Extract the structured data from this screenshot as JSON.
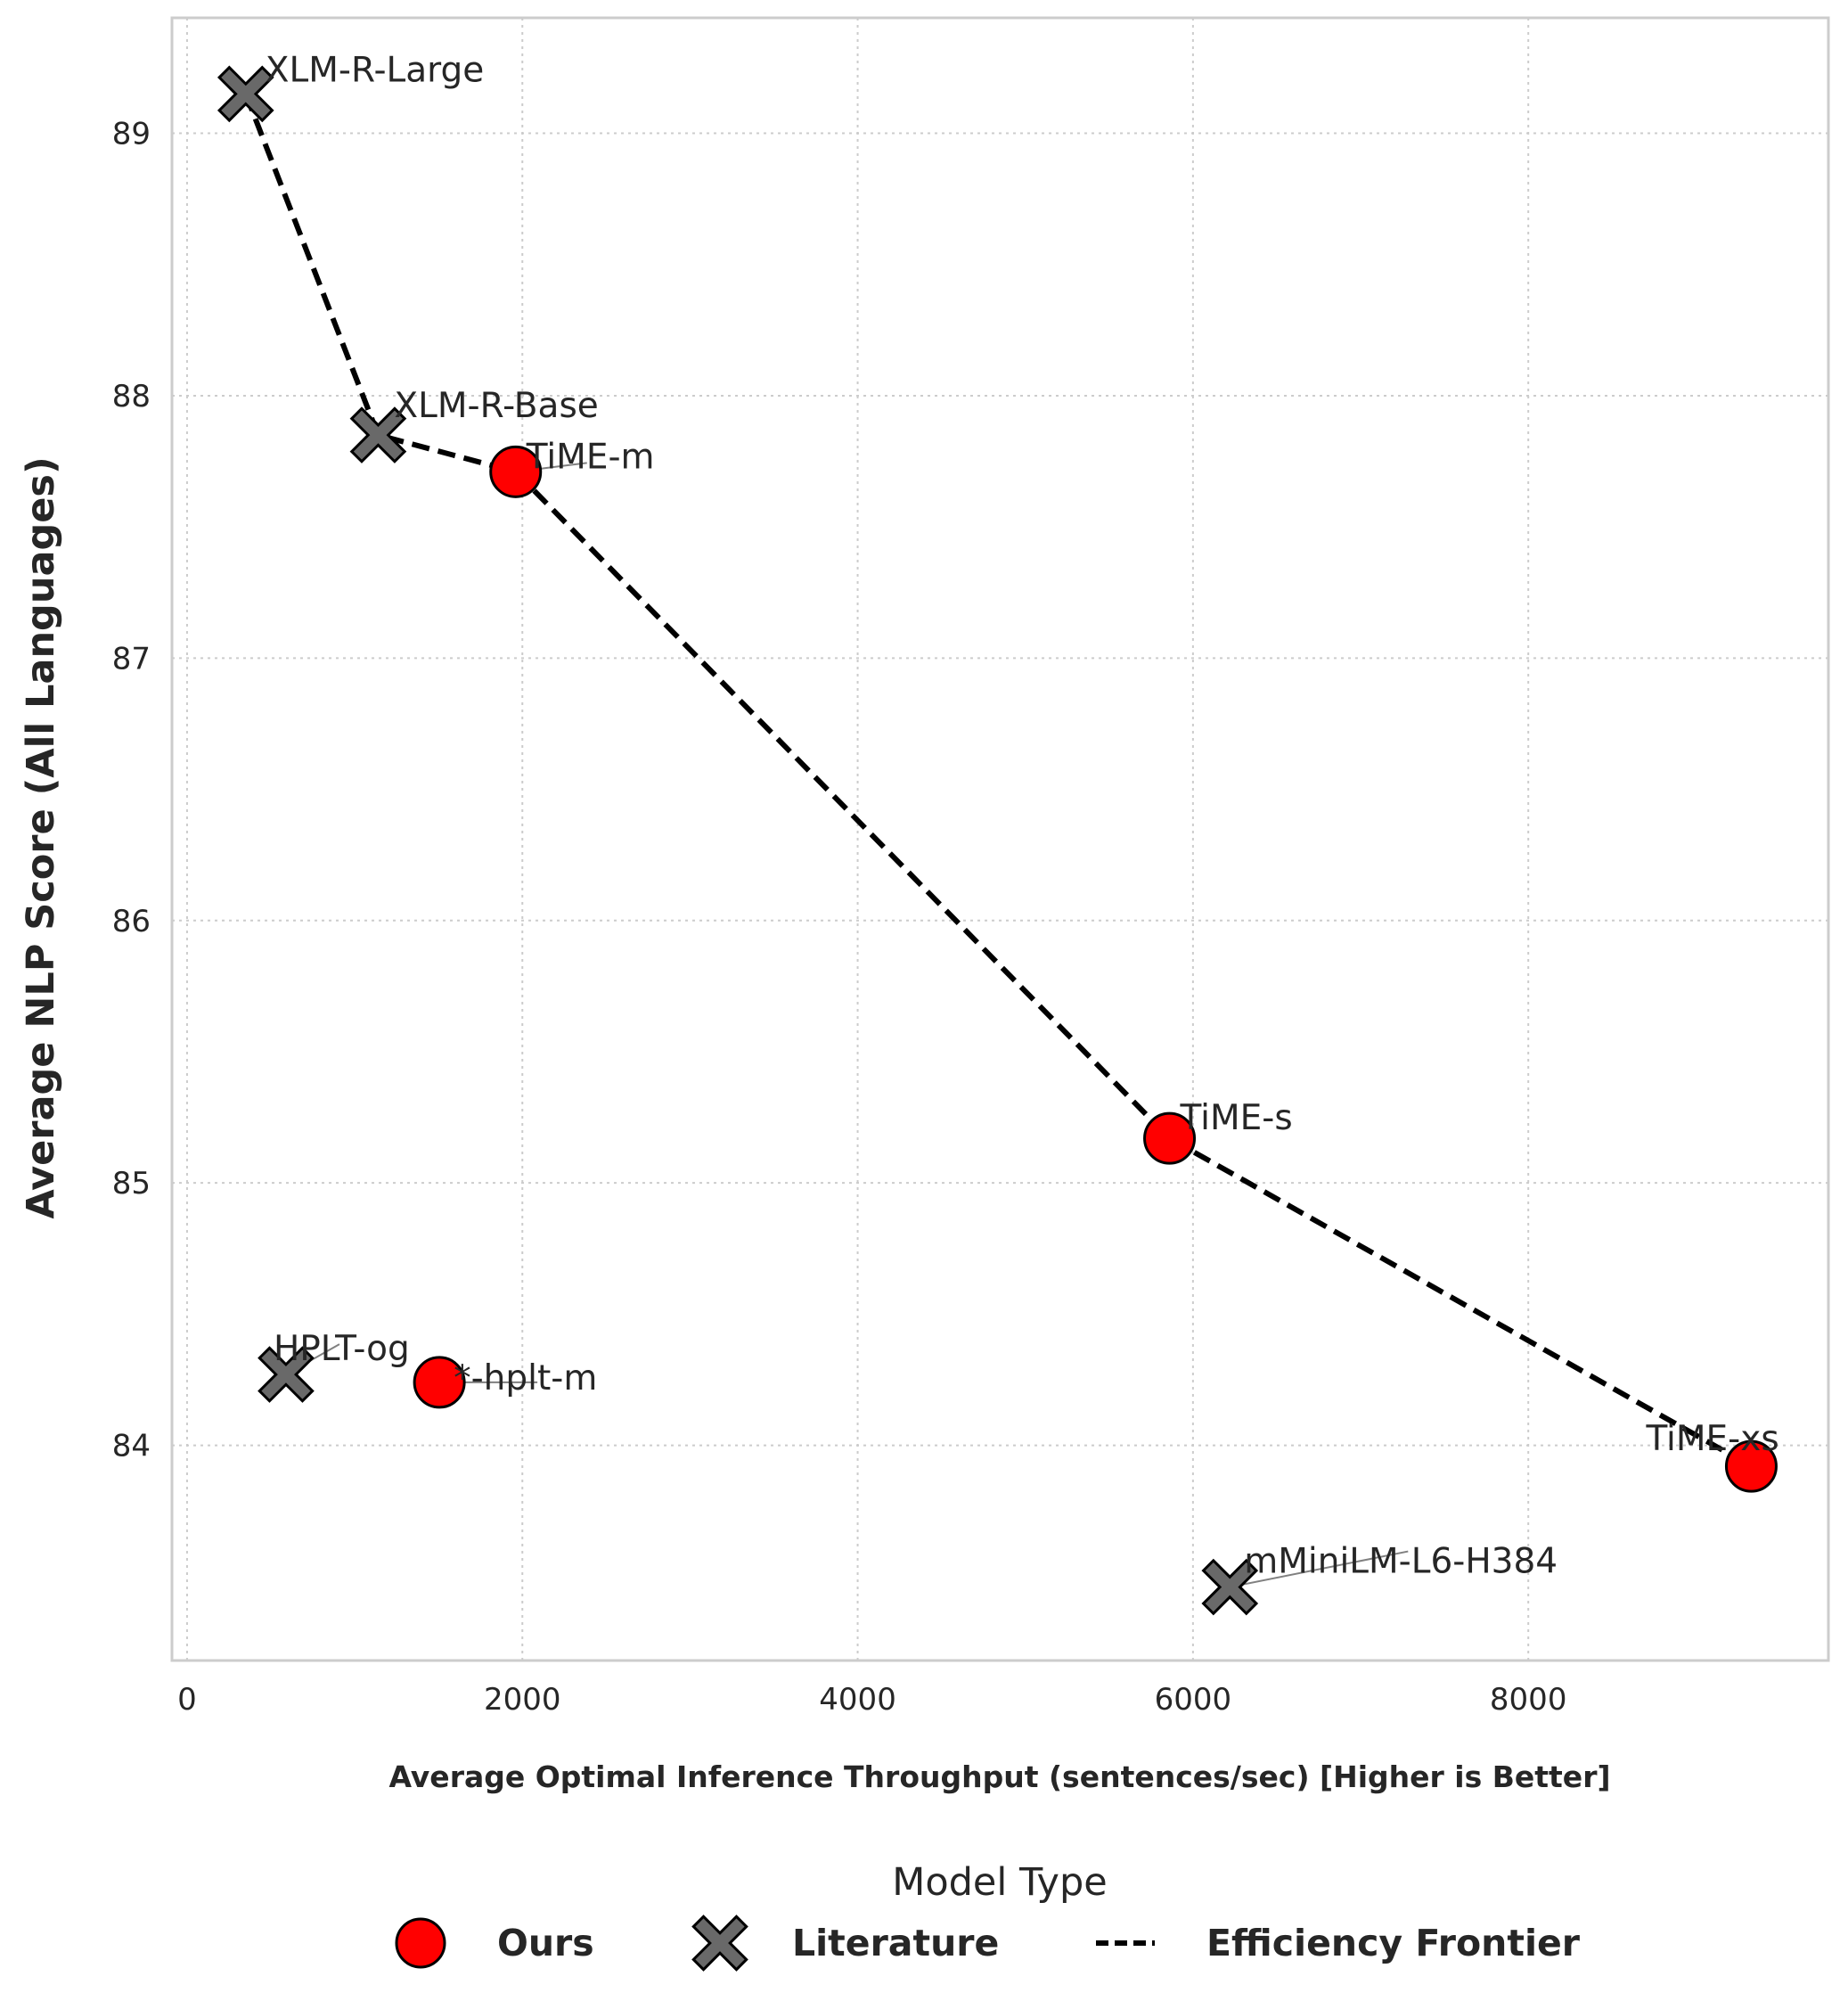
{
  "chart_data": {
    "type": "scatter",
    "xlabel": "Average Optimal Inference Throughput (sentences/sec) [Higher is Better]",
    "ylabel": "Average NLP Score (All Languages)",
    "xlim": [
      -90,
      9790
    ],
    "ylim": [
      83.18,
      89.44
    ],
    "xticks": [
      0,
      2000,
      4000,
      6000,
      8000
    ],
    "yticks": [
      84,
      85,
      86,
      87,
      88,
      89
    ],
    "grid": true,
    "legend": {
      "title": "Model Type",
      "placement": "bottom-center",
      "entries": [
        "Ours",
        "Literature",
        "Efficiency Frontier"
      ]
    },
    "colors": {
      "ours": "#ff0000",
      "literature": "#696969",
      "frontier": "#000000"
    },
    "points": [
      {
        "label": "XLM-R-Large",
        "type": "Literature",
        "x": 350,
        "y": 89.15
      },
      {
        "label": "XLM-R-Base",
        "type": "Literature",
        "x": 1140,
        "y": 87.85
      },
      {
        "label": "TiME-m",
        "type": "Ours",
        "x": 1960,
        "y": 87.71
      },
      {
        "label": "TiME-s",
        "type": "Ours",
        "x": 5860,
        "y": 85.17
      },
      {
        "label": "TiME-xs",
        "type": "Ours",
        "x": 9330,
        "y": 83.92
      },
      {
        "label": "mMiniLM-L6-H384",
        "type": "Literature",
        "x": 6220,
        "y": 83.46
      },
      {
        "label": "HPLT-og",
        "type": "Literature",
        "x": 590,
        "y": 84.27
      },
      {
        "label": "*-hplt-m",
        "type": "Ours",
        "x": 1505,
        "y": 84.24
      }
    ],
    "frontier": [
      "XLM-R-Large",
      "XLM-R-Base",
      "TiME-m",
      "TiME-s",
      "TiME-xs"
    ]
  }
}
